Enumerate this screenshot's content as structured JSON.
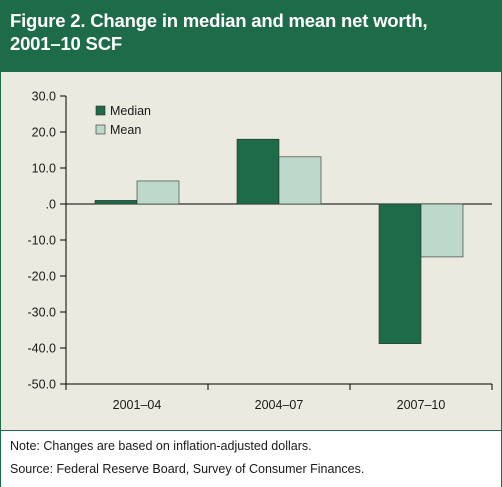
{
  "chart_data": {
    "type": "bar",
    "title": "Figure 2. Change in median and mean net worth, 2001–10 SCF",
    "title_lines": [
      "Figure 2. Change in median and mean net worth,",
      "2001–10 SCF"
    ],
    "categories": [
      "2001–04",
      "2004–07",
      "2007–10"
    ],
    "series": [
      {
        "name": "Median",
        "values": [
          1.0,
          18.0,
          -38.8
        ],
        "color": "#1e6b4a"
      },
      {
        "name": "Mean",
        "values": [
          6.4,
          13.1,
          -14.7
        ],
        "color": "#bcd9cc"
      }
    ],
    "ylim": [
      -50,
      30
    ],
    "yticks": [
      30,
      20,
      10,
      0,
      -10,
      -20,
      -30,
      -40,
      -50
    ],
    "ytick_labels": [
      "30.0",
      "20.0",
      "10.0",
      ".0",
      "-10.0",
      "-20.0",
      "-30.0",
      "-40.0",
      "-50.0"
    ],
    "legend_position": "top-left",
    "grid": false,
    "xlabel": "",
    "ylabel": ""
  },
  "notes": {
    "line1": "Note: Changes are based on inflation-adjusted dollars.",
    "line2": "Source: Federal Reserve Board, Survey of Consumer Finances."
  },
  "colors": {
    "header_bg": "#1e6b4a",
    "plot_bg": "#ebeae0",
    "axis": "#000000"
  }
}
